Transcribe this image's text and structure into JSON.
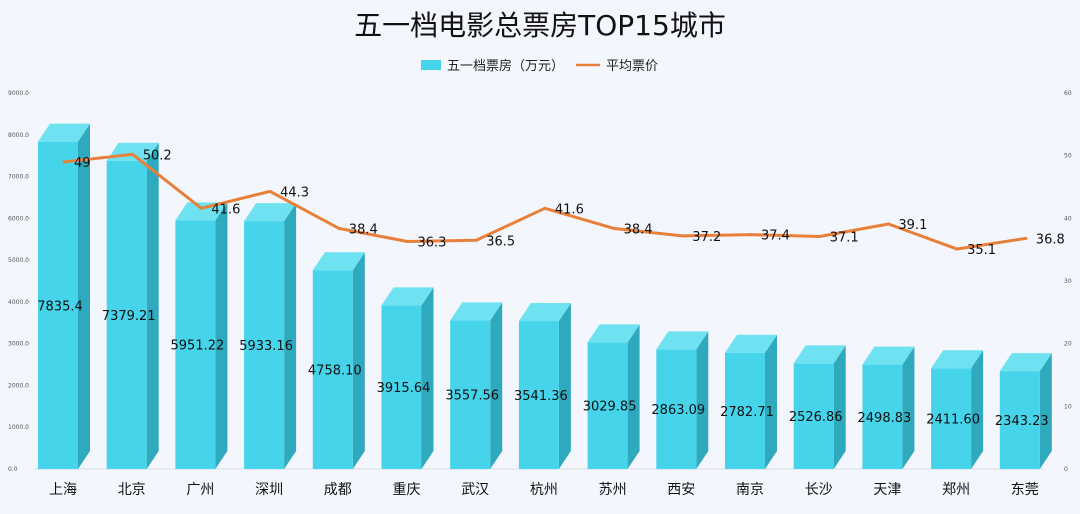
{
  "chart_data": {
    "type": "bar",
    "title": "五一档电影总票房TOP15城市",
    "categories": [
      "上海",
      "北京",
      "广州",
      "深圳",
      "成都",
      "重庆",
      "武汉",
      "杭州",
      "苏州",
      "西安",
      "南京",
      "长沙",
      "天津",
      "郑州",
      "东莞"
    ],
    "series": [
      {
        "name": "五一档票房（万元）",
        "type": "bar",
        "axis": "left",
        "color": "#45d4ea",
        "values": [
          7835.4,
          7379.21,
          5951.22,
          5933.16,
          4758.1,
          3915.64,
          3557.56,
          3541.36,
          3029.85,
          2863.09,
          2782.71,
          2526.86,
          2498.83,
          2411.6,
          2343.23
        ],
        "labels": [
          "7835.4",
          "7379.21",
          "5951.22",
          "5933.16",
          "4758.10",
          "3915.64",
          "3557.56",
          "3541.36",
          "3029.85",
          "2863.09",
          "2782.71",
          "2526.86",
          "2498.83",
          "2411.60",
          "2343.23"
        ]
      },
      {
        "name": "平均票价",
        "type": "line",
        "axis": "right",
        "color": "#e8803a",
        "values": [
          49,
          50.2,
          41.6,
          44.3,
          38.4,
          36.3,
          36.5,
          41.6,
          38.4,
          37.2,
          37.4,
          37.1,
          39.1,
          35.1,
          36.8
        ],
        "labels": [
          "49",
          "50.2",
          "41.6",
          "44.3",
          "38.4",
          "36.3",
          "36.5",
          "41.6",
          "38.4",
          "37.2",
          "37.4",
          "37.1",
          "39.1",
          "35.1",
          "36.8"
        ]
      }
    ],
    "y_left": {
      "ylim": [
        0,
        9000
      ],
      "ticks": [
        "0.0",
        "1000.0",
        "2000.0",
        "3000.0",
        "4000.0",
        "5000.0",
        "6000.0",
        "7000.0",
        "8000.0",
        "9000.0"
      ]
    },
    "y_right": {
      "ylim": [
        0,
        60
      ],
      "ticks": [
        "0",
        "10",
        "20",
        "30",
        "40",
        "50",
        "60"
      ]
    },
    "legend": "top-center",
    "grid": false
  }
}
